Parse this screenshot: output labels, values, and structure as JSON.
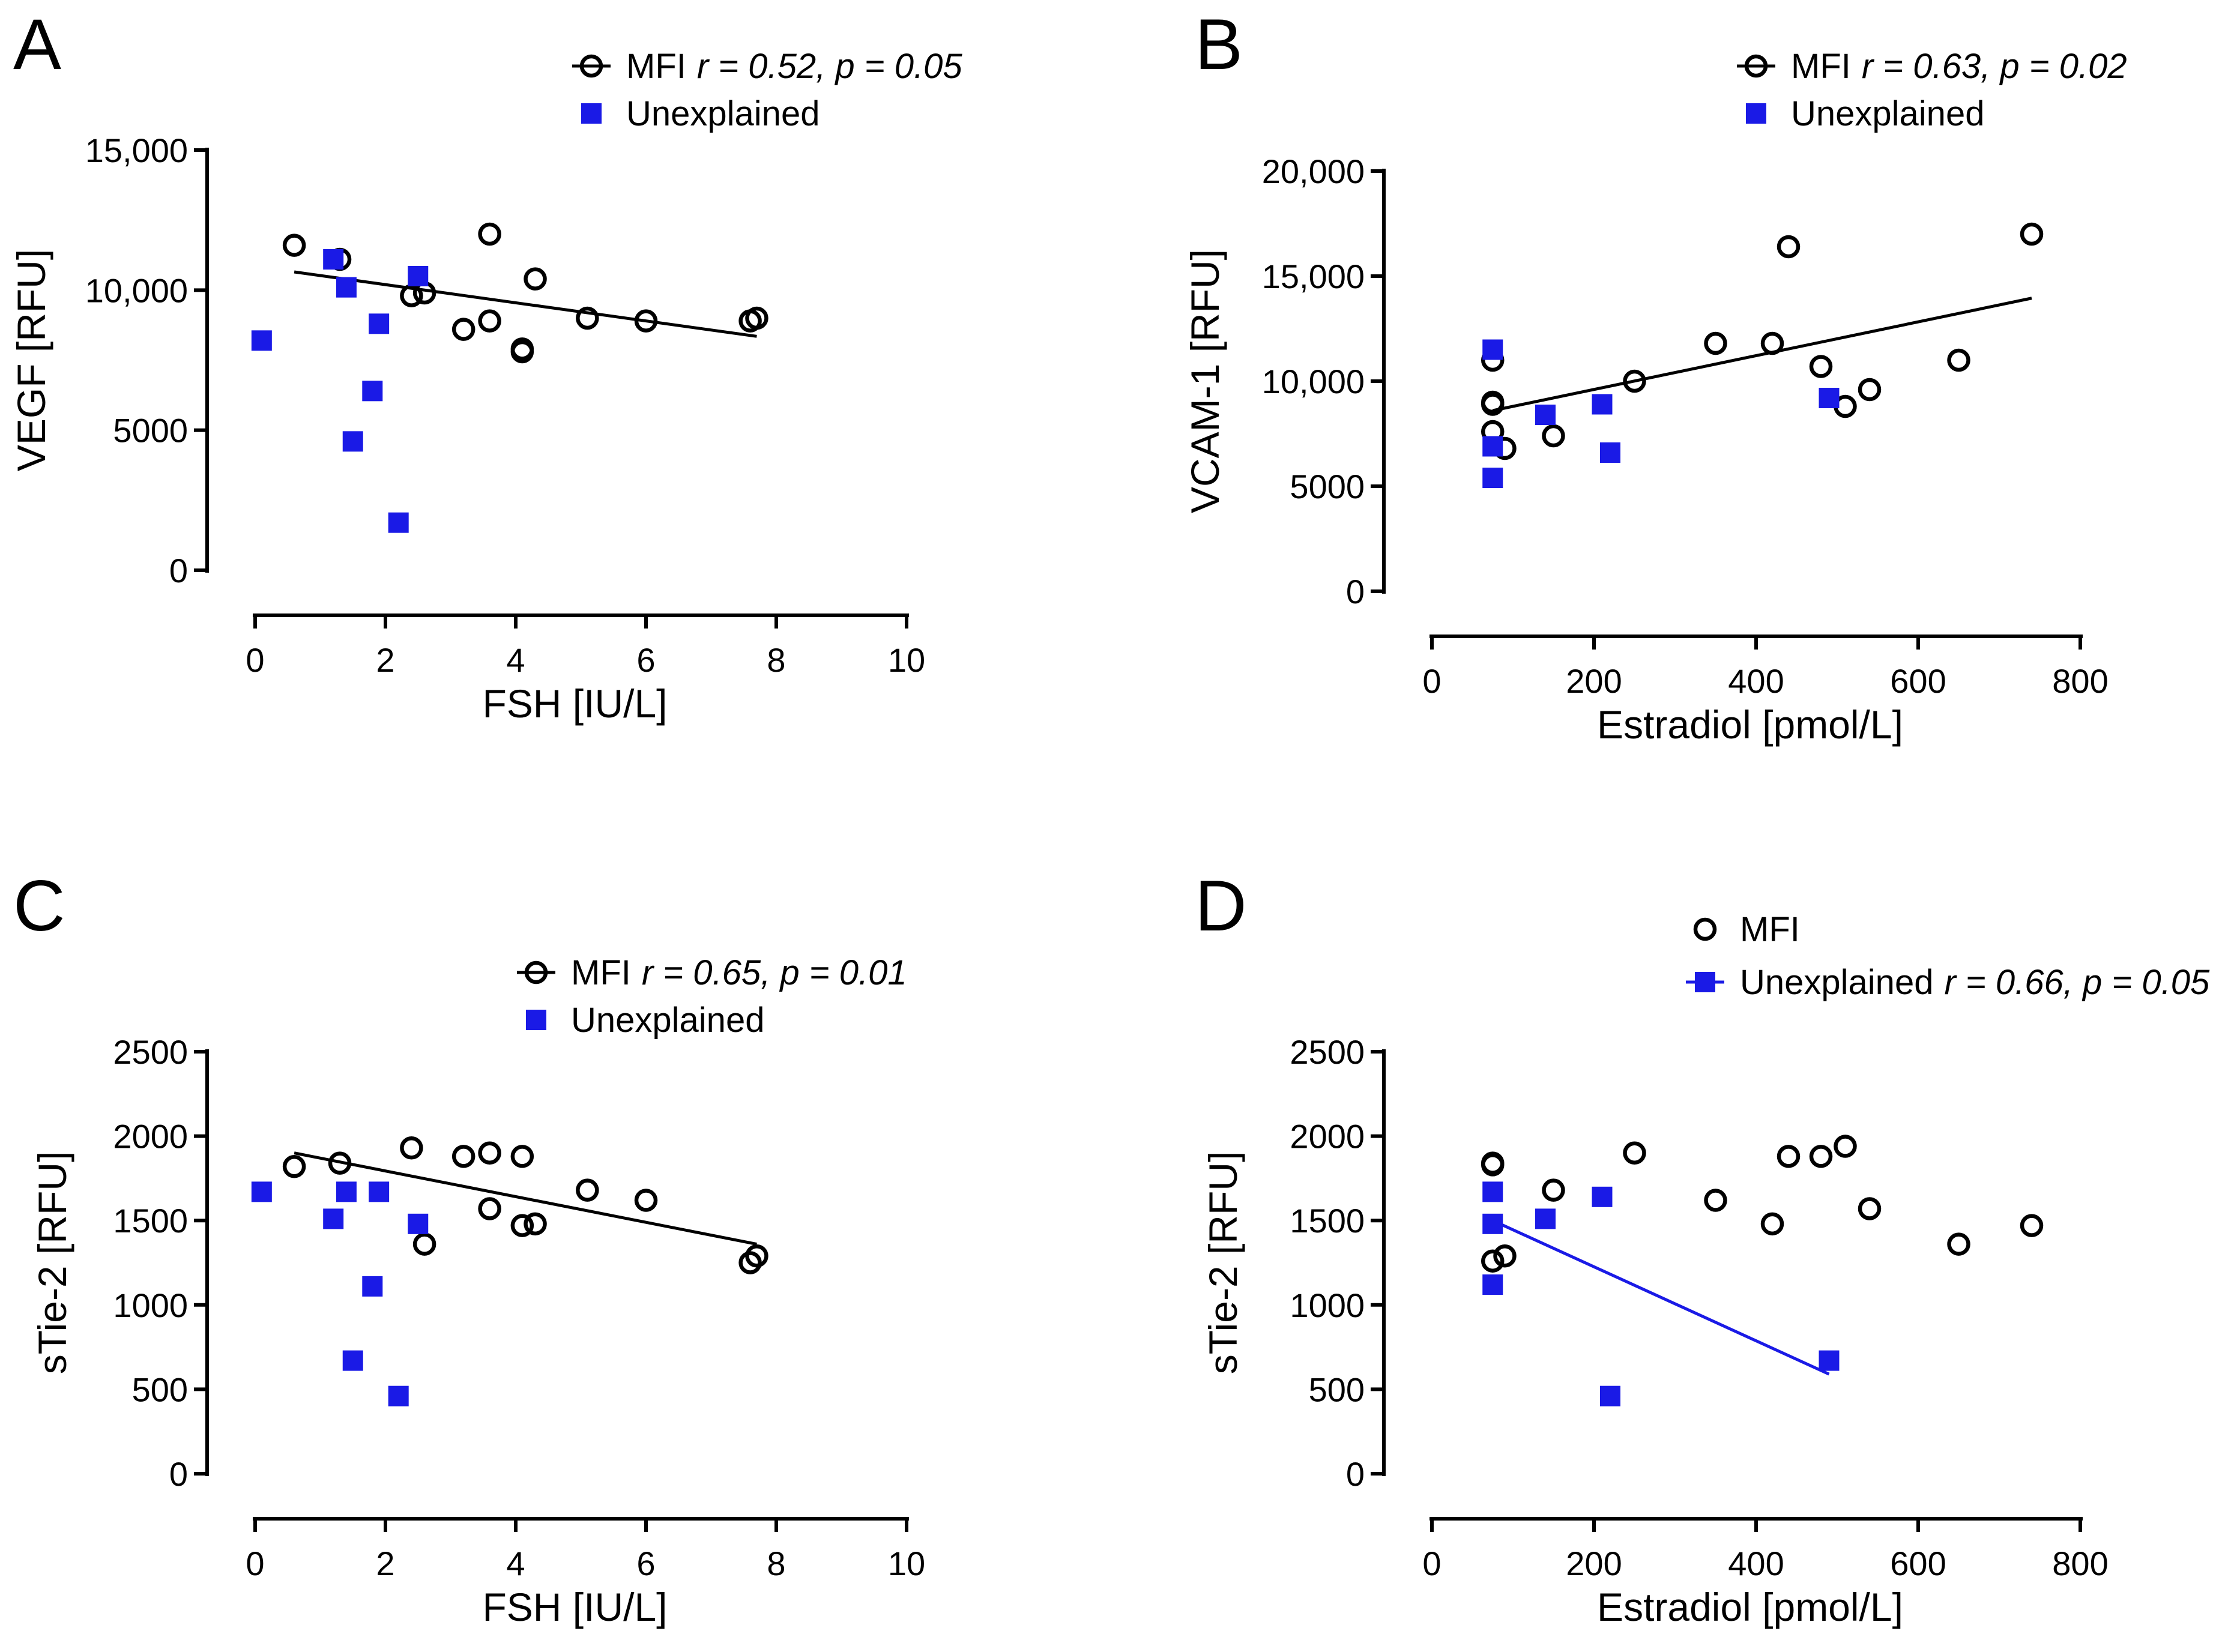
{
  "colors": {
    "mfi": "#000000",
    "unexplained": "#1a1ae6",
    "axis": "#000000"
  },
  "panels": [
    {
      "letter": "A",
      "xlabel": "FSH [IU/L]",
      "ylabel": "VEGF [RFU]",
      "xticks": [
        "0",
        "2",
        "4",
        "6",
        "8",
        "10"
      ],
      "yticks": [
        "0",
        "5000",
        "10,000",
        "15,000"
      ],
      "legend": [
        {
          "label": "MFI",
          "stat": "r = 0.52, p = 0.05",
          "marker": "circle",
          "with_line": true
        },
        {
          "label": "Unexplained",
          "stat": "",
          "marker": "square",
          "with_line": false
        }
      ]
    },
    {
      "letter": "B",
      "xlabel": "Estradiol [pmol/L]",
      "ylabel": "VCAM-1 [RFU]",
      "xticks": [
        "0",
        "200",
        "400",
        "600",
        "800"
      ],
      "yticks": [
        "0",
        "5000",
        "10,000",
        "15,000",
        "20,000"
      ],
      "legend": [
        {
          "label": "MFI",
          "stat": "r = 0.63, p = 0.02",
          "marker": "circle",
          "with_line": true
        },
        {
          "label": "Unexplained",
          "stat": "",
          "marker": "square",
          "with_line": false
        }
      ]
    },
    {
      "letter": "C",
      "xlabel": "FSH [IU/L]",
      "ylabel": "sTie-2 [RFU]",
      "xticks": [
        "0",
        "2",
        "4",
        "6",
        "8",
        "10"
      ],
      "yticks": [
        "0",
        "500",
        "1000",
        "1500",
        "2000",
        "2500"
      ],
      "legend": [
        {
          "label": "MFI",
          "stat": "r = 0.65, p = 0.01",
          "marker": "circle",
          "with_line": true
        },
        {
          "label": "Unexplained",
          "stat": "",
          "marker": "square",
          "with_line": false
        }
      ]
    },
    {
      "letter": "D",
      "xlabel": "Estradiol [pmol/L]",
      "ylabel": "sTie-2 [RFU]",
      "xticks": [
        "0",
        "200",
        "400",
        "600",
        "800"
      ],
      "yticks": [
        "0",
        "500",
        "1000",
        "1500",
        "2000",
        "2500"
      ],
      "legend": [
        {
          "label": "MFI",
          "stat": "",
          "marker": "circle",
          "with_line": false
        },
        {
          "label": "Unexplained",
          "stat": "r = 0.66, p = 0.05",
          "marker": "square",
          "with_line": true
        }
      ]
    }
  ],
  "chart_data": [
    {
      "type": "scatter",
      "panel": "A",
      "title": "",
      "xlabel": "FSH [IU/L]",
      "ylabel": "VEGF [RFU]",
      "xlim": [
        0,
        10
      ],
      "ylim": [
        0,
        15000
      ],
      "series": [
        {
          "name": "MFI",
          "marker": "open-circle",
          "points": [
            [
              0.6,
              11600
            ],
            [
              1.3,
              11100
            ],
            [
              2.4,
              9800
            ],
            [
              2.6,
              9900
            ],
            [
              3.2,
              8600
            ],
            [
              3.6,
              12000
            ],
            [
              3.6,
              8900
            ],
            [
              4.1,
              7900
            ],
            [
              4.1,
              7800
            ],
            [
              4.3,
              10400
            ],
            [
              5.1,
              9000
            ],
            [
              6.0,
              8900
            ],
            [
              7.6,
              8900
            ],
            [
              7.7,
              9000
            ]
          ],
          "fit": [
            [
              0.6,
              10650
            ],
            [
              7.7,
              8350
            ]
          ]
        },
        {
          "name": "Unexplained",
          "marker": "filled-square",
          "points": [
            [
              0.1,
              8200
            ],
            [
              1.2,
              11100
            ],
            [
              1.4,
              10100
            ],
            [
              1.5,
              4600
            ],
            [
              1.8,
              6400
            ],
            [
              1.9,
              8800
            ],
            [
              2.2,
              1700
            ],
            [
              2.5,
              10500
            ]
          ]
        }
      ]
    },
    {
      "type": "scatter",
      "panel": "B",
      "title": "",
      "xlabel": "Estradiol [pmol/L]",
      "ylabel": "VCAM-1 [RFU]",
      "xlim": [
        0,
        800
      ],
      "ylim": [
        0,
        20000
      ],
      "series": [
        {
          "name": "MFI",
          "marker": "open-circle",
          "points": [
            [
              75,
              11000
            ],
            [
              75,
              9000
            ],
            [
              75,
              8900
            ],
            [
              75,
              7600
            ],
            [
              90,
              6800
            ],
            [
              150,
              7400
            ],
            [
              250,
              10000
            ],
            [
              350,
              11800
            ],
            [
              420,
              11800
            ],
            [
              440,
              16400
            ],
            [
              480,
              10700
            ],
            [
              510,
              8800
            ],
            [
              540,
              9600
            ],
            [
              650,
              11000
            ],
            [
              740,
              17000
            ]
          ],
          "fit": [
            [
              75,
              8600
            ],
            [
              740,
              13950
            ]
          ]
        },
        {
          "name": "Unexplained",
          "marker": "filled-square",
          "points": [
            [
              75,
              11500
            ],
            [
              75,
              6900
            ],
            [
              75,
              5400
            ],
            [
              140,
              8400
            ],
            [
              210,
              8900
            ],
            [
              220,
              6600
            ],
            [
              490,
              9200
            ]
          ]
        }
      ]
    },
    {
      "type": "scatter",
      "panel": "C",
      "title": "",
      "xlabel": "FSH [IU/L]",
      "ylabel": "sTie-2 [RFU]",
      "xlim": [
        0,
        10
      ],
      "ylim": [
        0,
        2500
      ],
      "series": [
        {
          "name": "MFI",
          "marker": "open-circle",
          "points": [
            [
              0.6,
              1820
            ],
            [
              1.3,
              1840
            ],
            [
              2.4,
              1930
            ],
            [
              2.6,
              1360
            ],
            [
              3.2,
              1880
            ],
            [
              3.6,
              1900
            ],
            [
              3.6,
              1570
            ],
            [
              4.1,
              1880
            ],
            [
              4.1,
              1470
            ],
            [
              4.3,
              1480
            ],
            [
              5.1,
              1680
            ],
            [
              6.0,
              1620
            ],
            [
              7.6,
              1250
            ],
            [
              7.7,
              1290
            ]
          ],
          "fit": [
            [
              0.6,
              1900
            ],
            [
              7.7,
              1360
            ]
          ]
        },
        {
          "name": "Unexplained",
          "marker": "filled-square",
          "points": [
            [
              0.1,
              1670
            ],
            [
              1.2,
              1510
            ],
            [
              1.4,
              1670
            ],
            [
              1.5,
              670
            ],
            [
              1.8,
              1110
            ],
            [
              1.9,
              1670
            ],
            [
              2.2,
              460
            ],
            [
              2.5,
              1480
            ]
          ]
        }
      ]
    },
    {
      "type": "scatter",
      "panel": "D",
      "title": "",
      "xlabel": "Estradiol [pmol/L]",
      "ylabel": "sTie-2 [RFU]",
      "xlim": [
        0,
        800
      ],
      "ylim": [
        0,
        2500
      ],
      "series": [
        {
          "name": "MFI",
          "marker": "open-circle",
          "points": [
            [
              75,
              1840
            ],
            [
              75,
              1830
            ],
            [
              75,
              1260
            ],
            [
              90,
              1290
            ],
            [
              150,
              1680
            ],
            [
              250,
              1900
            ],
            [
              350,
              1620
            ],
            [
              420,
              1480
            ],
            [
              440,
              1880
            ],
            [
              480,
              1880
            ],
            [
              510,
              1940
            ],
            [
              540,
              1570
            ],
            [
              650,
              1360
            ],
            [
              740,
              1470
            ]
          ]
        },
        {
          "name": "Unexplained",
          "marker": "filled-square",
          "points": [
            [
              75,
              1670
            ],
            [
              75,
              1480
            ],
            [
              75,
              1120
            ],
            [
              140,
              1510
            ],
            [
              210,
              1640
            ],
            [
              220,
              460
            ],
            [
              490,
              670
            ]
          ],
          "fit": [
            [
              75,
              1500
            ],
            [
              490,
              590
            ]
          ]
        }
      ]
    }
  ]
}
